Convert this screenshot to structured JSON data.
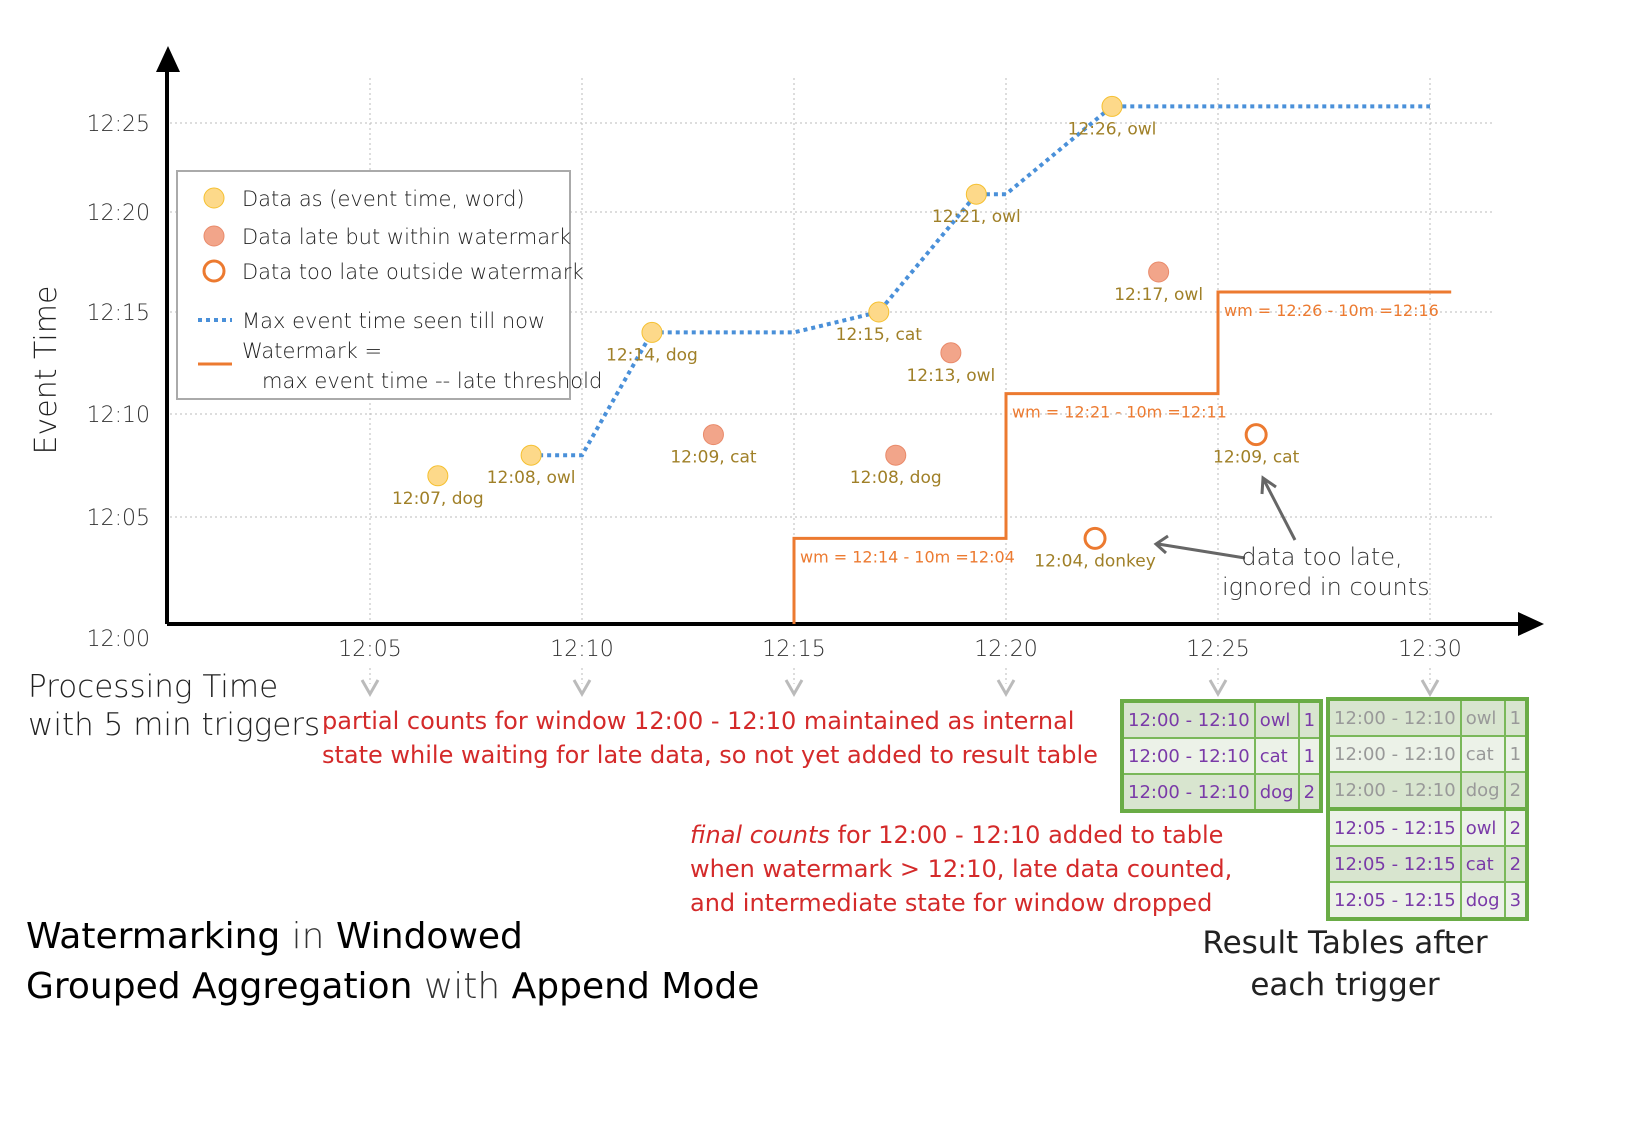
{
  "chart_data": {
    "type": "scatter",
    "ylabel": "Event Time",
    "xlabel": [
      "Processing Time",
      "with 5 min triggers"
    ],
    "x_ticks": [
      "12:05",
      "12:10",
      "12:15",
      "12:20",
      "12:25",
      "12:30"
    ],
    "y_ticks": [
      "12:00",
      "12:05",
      "12:10",
      "12:15",
      "12:20",
      "12:25"
    ],
    "points": [
      {
        "proc": 6.6,
        "event": 7,
        "label": "12:07, dog",
        "kind": "on_time"
      },
      {
        "proc": 8.8,
        "event": 8,
        "label": "12:08, owl",
        "kind": "on_time"
      },
      {
        "proc": 11.65,
        "event": 14,
        "label": "12:14, dog",
        "kind": "on_time"
      },
      {
        "proc": 13.1,
        "event": 9,
        "label": "12:09, cat",
        "kind": "late"
      },
      {
        "proc": 17.0,
        "event": 15,
        "label": "12:15, cat",
        "kind": "on_time"
      },
      {
        "proc": 17.4,
        "event": 8,
        "label": "12:08, dog",
        "kind": "late"
      },
      {
        "proc": 18.7,
        "event": 13,
        "label": "12:13, owl",
        "kind": "late"
      },
      {
        "proc": 19.3,
        "event": 21,
        "label": "12:21, owl",
        "kind": "on_time"
      },
      {
        "proc": 22.1,
        "event": 4,
        "label": "12:04, donkey",
        "kind": "too_late"
      },
      {
        "proc": 22.5,
        "event": 26,
        "label": "12:26, owl",
        "kind": "on_time"
      },
      {
        "proc": 23.6,
        "event": 17,
        "label": "12:17, owl",
        "kind": "late"
      },
      {
        "proc": 25.9,
        "event": 9,
        "label": "12:09, cat",
        "kind": "too_late"
      }
    ],
    "max_event_line": [
      [
        8.8,
        8
      ],
      [
        10,
        8
      ],
      [
        11.65,
        14
      ],
      [
        15,
        14
      ],
      [
        17,
        15
      ],
      [
        19.3,
        21
      ],
      [
        20,
        21
      ],
      [
        22.5,
        26
      ],
      [
        30,
        26
      ]
    ],
    "watermark_line": [
      [
        15,
        0
      ],
      [
        15,
        4
      ],
      [
        20,
        4
      ],
      [
        20,
        11
      ],
      [
        25,
        11
      ],
      [
        25,
        16
      ],
      [
        30.5,
        16
      ]
    ],
    "watermark_labels": [
      {
        "proc": 15,
        "event": 4,
        "text": "wm = 12:14 - 10m =12:04"
      },
      {
        "proc": 20,
        "event": 11,
        "text": "wm = 12:21 - 10m =12:11"
      },
      {
        "proc": 25,
        "event": 16,
        "text": "wm = 12:26 - 10m =12:16"
      }
    ],
    "legend": {
      "placement": "top-left",
      "items": [
        {
          "label": "Data as (event time, word)",
          "kind": "on_time"
        },
        {
          "label": "Data late but within watermark",
          "kind": "late"
        },
        {
          "label": "Data too late outside watermark",
          "kind": "too_late"
        },
        {
          "label": "Max event time seen till now",
          "kind": "max_line"
        },
        {
          "label": "Watermark =",
          "label2": "max event time -- late threshold",
          "kind": "wm_line"
        }
      ]
    },
    "colors": {
      "on_time": "#fdd98a",
      "late": "#f2a58a",
      "too_late": "#ec7a30",
      "max_line": "#4a90d9",
      "wm_line": "#ec7a30",
      "label": "#a08028",
      "annotation": "#d42a2a"
    },
    "grid": true
  },
  "annotations": {
    "too_late": [
      "data too late,",
      "ignored in counts"
    ],
    "partial": [
      "partial counts for window 12:00 - 12:10 maintained as internal",
      "state while waiting for late data, so not yet added  to result table"
    ],
    "final_em": "final counts",
    "final": [
      " for 12:00 - 12:10 added to table",
      "when watermark > 12:10, late data counted,",
      "and intermediate state for window dropped"
    ]
  },
  "title": {
    "p1": "Watermarking",
    "p2": " in ",
    "p3": "Windowed",
    "p4": "Grouped Aggregation",
    "p5": " with ",
    "p6": "Append Mode"
  },
  "result_caption": [
    "Result Tables after",
    "each trigger"
  ],
  "table1": [
    [
      "12:00 - 12:10",
      "owl",
      "1"
    ],
    [
      "12:00 - 12:10",
      "cat",
      "1"
    ],
    [
      "12:00 - 12:10",
      "dog",
      "2"
    ]
  ],
  "table2_old": [
    [
      "12:00 - 12:10",
      "owl",
      "1"
    ],
    [
      "12:00 - 12:10",
      "cat",
      "1"
    ],
    [
      "12:00 - 12:10",
      "dog",
      "2"
    ]
  ],
  "table2_new": [
    [
      "12:05 - 12:15",
      "owl",
      "2"
    ],
    [
      "12:05 - 12:15",
      "cat",
      "2"
    ],
    [
      "12:05 - 12:15",
      "dog",
      "3"
    ]
  ]
}
